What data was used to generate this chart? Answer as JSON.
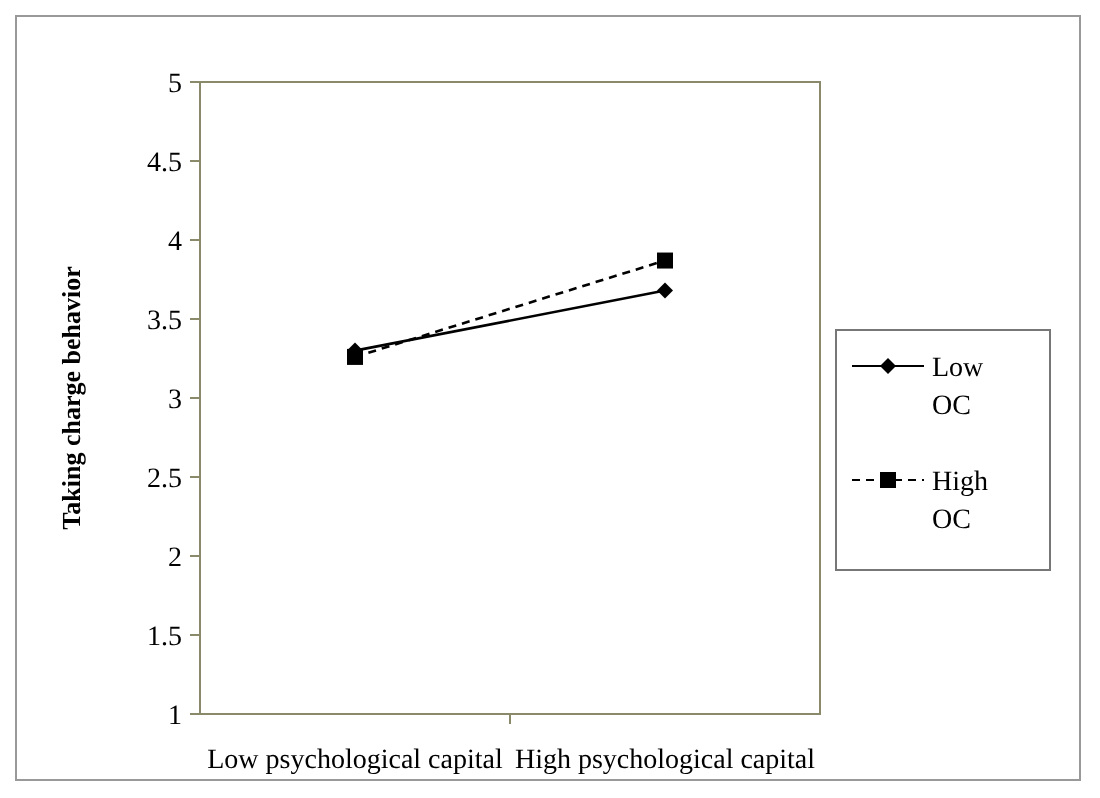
{
  "chart_data": {
    "type": "line",
    "ylabel": "Taking charge behavior",
    "categories": [
      "Low psychological capital",
      "High psychological capital"
    ],
    "series": [
      {
        "name": "Low OC",
        "color": "#000000",
        "values": [
          3.3,
          3.68
        ],
        "marker": "diamond",
        "line_style": "solid"
      },
      {
        "name": "High OC",
        "color": "#000000",
        "values": [
          3.26,
          3.87
        ],
        "marker": "square",
        "line_style": "dashed"
      }
    ],
    "ylim": [
      1,
      5
    ],
    "yticks": [
      1,
      1.5,
      2,
      2.5,
      3,
      3.5,
      4,
      4.5,
      5
    ],
    "grid": false,
    "legend": "right"
  }
}
